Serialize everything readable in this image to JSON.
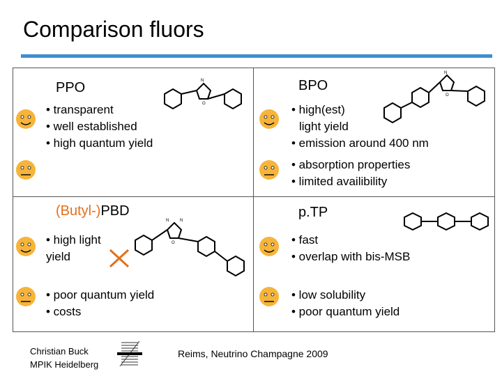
{
  "slide": {
    "title": "Comparison fluors",
    "accent_color": "#3d8fd1"
  },
  "ppo": {
    "name": "PPO",
    "good_points": [
      "• transparent",
      "• well established",
      "• high quantum yield"
    ],
    "good_icon": "smiling-face-icon",
    "bad_icon": "neutral-face-icon"
  },
  "bpo": {
    "name": "BPO",
    "good_points": [
      "• high(est)",
      "light yield",
      "• emission around 400 nm"
    ],
    "bad_points": [
      "• absorption properties",
      "• limited availibility"
    ]
  },
  "pbd": {
    "name_prefix": "(Butyl-)",
    "name": "PBD",
    "prefix_color": "#e2701a",
    "good_points": [
      "• high light",
      "yield"
    ],
    "bad_points": [
      "• poor quantum yield",
      "• costs"
    ],
    "cross_icon": "red-cross-icon"
  },
  "ptp": {
    "name": "p.TP",
    "good_points": [
      "• fast",
      "• overlap with bis-MSB"
    ],
    "bad_points": [
      "• low solubility",
      "• poor quantum yield"
    ]
  },
  "footer": {
    "author": "Christian Buck",
    "institute": "MPIK Heidelberg",
    "event": "Reims, Neutrino Champagne 2009",
    "logo_icon": "mpik-logo-icon"
  }
}
